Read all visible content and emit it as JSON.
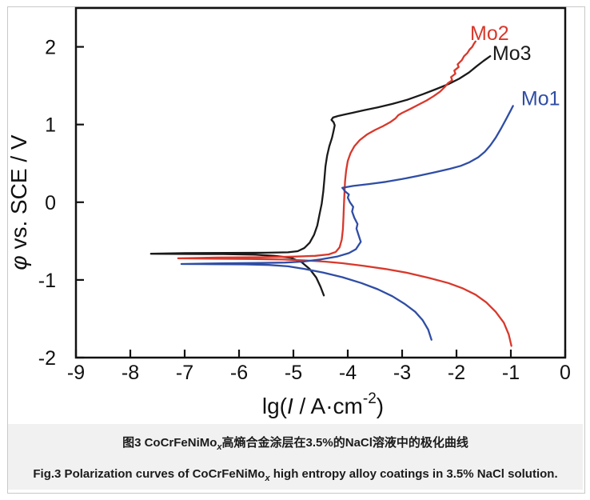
{
  "chart_data": {
    "type": "line",
    "title": "",
    "xlabel": "lg(I / A·cm⁻²)",
    "xlabel_parts": {
      "pre": "lg(",
      "var": "I",
      "mid": " / A·cm",
      "sup": "-2",
      "post": ")"
    },
    "ylabel": "φ vs. SCE / V",
    "ylabel_parts": {
      "var": "φ",
      "rest": " vs. SCE / V"
    },
    "xlim": [
      -9,
      0
    ],
    "ylim": [
      -2,
      2.5
    ],
    "xticks": [
      -9,
      -8,
      -7,
      -6,
      -5,
      -4,
      -3,
      -2,
      -1,
      0
    ],
    "yticks": [
      -2,
      -1,
      0,
      1,
      2
    ],
    "grid": false,
    "legend_position": "curve-end-labels",
    "axis_color": "#111111",
    "series": [
      {
        "name": "Mo3",
        "color": "#1a1a1a",
        "corrosion_potential_V": -0.66,
        "points": [
          [
            -4.44,
            -1.2
          ],
          [
            -4.5,
            -1.09
          ],
          [
            -4.58,
            -0.97
          ],
          [
            -4.7,
            -0.86
          ],
          [
            -4.85,
            -0.77
          ],
          [
            -5.05,
            -0.715
          ],
          [
            -5.35,
            -0.69
          ],
          [
            -5.7,
            -0.675
          ],
          [
            -6.3,
            -0.668
          ],
          [
            -7.0,
            -0.666
          ],
          [
            -7.62,
            -0.663
          ],
          [
            -7.0,
            -0.655
          ],
          [
            -6.2,
            -0.652
          ],
          [
            -5.5,
            -0.65
          ],
          [
            -5.1,
            -0.645
          ],
          [
            -4.92,
            -0.63
          ],
          [
            -4.8,
            -0.59
          ],
          [
            -4.7,
            -0.52
          ],
          [
            -4.62,
            -0.42
          ],
          [
            -4.56,
            -0.3
          ],
          [
            -4.52,
            -0.16
          ],
          [
            -4.48,
            -0.02
          ],
          [
            -4.45,
            0.14
          ],
          [
            -4.43,
            0.3
          ],
          [
            -4.41,
            0.46
          ],
          [
            -4.38,
            0.6
          ],
          [
            -4.34,
            0.72
          ],
          [
            -4.29,
            0.83
          ],
          [
            -4.26,
            0.92
          ],
          [
            -4.24,
            0.99
          ],
          [
            -4.26,
            1.03
          ],
          [
            -4.3,
            1.06
          ],
          [
            -4.27,
            1.09
          ],
          [
            -4.18,
            1.11
          ],
          [
            -4.05,
            1.13
          ],
          [
            -3.92,
            1.15
          ],
          [
            -3.7,
            1.185
          ],
          [
            -3.45,
            1.22
          ],
          [
            -3.18,
            1.265
          ],
          [
            -2.9,
            1.32
          ],
          [
            -2.62,
            1.39
          ],
          [
            -2.38,
            1.455
          ],
          [
            -2.15,
            1.52
          ],
          [
            -1.95,
            1.59
          ],
          [
            -1.77,
            1.67
          ],
          [
            -1.62,
            1.755
          ],
          [
            -1.5,
            1.82
          ],
          [
            -1.38,
            1.88
          ]
        ]
      },
      {
        "name": "Mo2",
        "color": "#d8382b",
        "corrosion_potential_V": -0.72,
        "points": [
          [
            -0.99,
            -1.85
          ],
          [
            -1.04,
            -1.7
          ],
          [
            -1.13,
            -1.55
          ],
          [
            -1.28,
            -1.41
          ],
          [
            -1.45,
            -1.29
          ],
          [
            -1.65,
            -1.19
          ],
          [
            -1.88,
            -1.11
          ],
          [
            -2.15,
            -1.04
          ],
          [
            -2.5,
            -0.975
          ],
          [
            -2.9,
            -0.91
          ],
          [
            -3.3,
            -0.86
          ],
          [
            -3.7,
            -0.82
          ],
          [
            -4.1,
            -0.785
          ],
          [
            -4.4,
            -0.765
          ],
          [
            -4.75,
            -0.75
          ],
          [
            -5.2,
            -0.738
          ],
          [
            -5.8,
            -0.73
          ],
          [
            -6.5,
            -0.726
          ],
          [
            -7.12,
            -0.722
          ],
          [
            -6.4,
            -0.712
          ],
          [
            -5.6,
            -0.708
          ],
          [
            -5.0,
            -0.7
          ],
          [
            -4.6,
            -0.69
          ],
          [
            -4.35,
            -0.672
          ],
          [
            -4.22,
            -0.64
          ],
          [
            -4.15,
            -0.58
          ],
          [
            -4.11,
            -0.48
          ],
          [
            -4.09,
            -0.35
          ],
          [
            -4.08,
            -0.2
          ],
          [
            -4.07,
            -0.04
          ],
          [
            -4.06,
            0.12
          ],
          [
            -4.05,
            0.27
          ],
          [
            -4.03,
            0.41
          ],
          [
            -4.0,
            0.53
          ],
          [
            -3.95,
            0.63
          ],
          [
            -3.88,
            0.72
          ],
          [
            -3.78,
            0.8
          ],
          [
            -3.65,
            0.87
          ],
          [
            -3.5,
            0.93
          ],
          [
            -3.35,
            0.98
          ],
          [
            -3.22,
            1.03
          ],
          [
            -3.12,
            1.08
          ],
          [
            -3.07,
            1.12
          ],
          [
            -3.0,
            1.15
          ],
          [
            -2.85,
            1.2
          ],
          [
            -2.7,
            1.255
          ],
          [
            -2.55,
            1.31
          ],
          [
            -2.42,
            1.365
          ],
          [
            -2.3,
            1.425
          ],
          [
            -2.22,
            1.48
          ],
          [
            -2.16,
            1.53
          ],
          [
            -2.08,
            1.57
          ],
          [
            -2.1,
            1.61
          ],
          [
            -2.02,
            1.655
          ],
          [
            -2.04,
            1.695
          ],
          [
            -1.96,
            1.74
          ],
          [
            -1.98,
            1.775
          ],
          [
            -1.9,
            1.83
          ],
          [
            -1.86,
            1.88
          ],
          [
            -1.8,
            1.92
          ],
          [
            -1.76,
            1.965
          ],
          [
            -1.71,
            2.0
          ],
          [
            -1.68,
            2.04
          ],
          [
            -1.65,
            2.07
          ]
        ]
      },
      {
        "name": "Mo1",
        "color": "#2f4da5",
        "corrosion_potential_V": -0.8,
        "points": [
          [
            -2.46,
            -1.77
          ],
          [
            -2.52,
            -1.64
          ],
          [
            -2.62,
            -1.52
          ],
          [
            -2.76,
            -1.41
          ],
          [
            -2.95,
            -1.31
          ],
          [
            -3.18,
            -1.21
          ],
          [
            -3.45,
            -1.12
          ],
          [
            -3.75,
            -1.04
          ],
          [
            -4.1,
            -0.965
          ],
          [
            -4.45,
            -0.905
          ],
          [
            -4.8,
            -0.858
          ],
          [
            -5.1,
            -0.825
          ],
          [
            -5.45,
            -0.808
          ],
          [
            -5.9,
            -0.8
          ],
          [
            -6.5,
            -0.797
          ],
          [
            -7.06,
            -0.795
          ],
          [
            -6.3,
            -0.786
          ],
          [
            -5.6,
            -0.782
          ],
          [
            -5.15,
            -0.777
          ],
          [
            -4.8,
            -0.762
          ],
          [
            -4.5,
            -0.737
          ],
          [
            -4.2,
            -0.7
          ],
          [
            -3.98,
            -0.655
          ],
          [
            -3.85,
            -0.605
          ],
          [
            -3.76,
            -0.51
          ],
          [
            -3.8,
            -0.425
          ],
          [
            -3.84,
            -0.34
          ],
          [
            -3.82,
            -0.28
          ],
          [
            -3.88,
            -0.2
          ],
          [
            -3.92,
            -0.12
          ],
          [
            -3.9,
            -0.06
          ],
          [
            -3.96,
            0.0
          ],
          [
            -4.0,
            0.06
          ],
          [
            -3.98,
            0.1
          ],
          [
            -4.05,
            0.14
          ],
          [
            -4.08,
            0.17
          ],
          [
            -4.1,
            0.185
          ],
          [
            -3.9,
            0.21
          ],
          [
            -3.6,
            0.235
          ],
          [
            -3.3,
            0.262
          ],
          [
            -3.0,
            0.298
          ],
          [
            -2.7,
            0.34
          ],
          [
            -2.4,
            0.385
          ],
          [
            -2.12,
            0.43
          ],
          [
            -1.92,
            0.468
          ],
          [
            -1.76,
            0.515
          ],
          [
            -1.6,
            0.578
          ],
          [
            -1.48,
            0.648
          ],
          [
            -1.38,
            0.73
          ],
          [
            -1.28,
            0.83
          ],
          [
            -1.18,
            0.95
          ],
          [
            -1.08,
            1.08
          ],
          [
            -1.0,
            1.185
          ],
          [
            -0.96,
            1.24
          ]
        ]
      }
    ],
    "annotations": [
      {
        "text": "Mo2",
        "color": "#d8382b",
        "x": -1.75,
        "y": 2.09
      },
      {
        "text": "Mo3",
        "color": "#1a1a1a",
        "x": -1.34,
        "y": 1.83
      },
      {
        "text": "Mo1",
        "color": "#2f4da5",
        "x": -0.81,
        "y": 1.25
      }
    ]
  },
  "caption": {
    "cn": {
      "pre": "图3   CoCrFeNiMo",
      "sub": "x",
      "post": "高熵合金涂层在3.5%的NaCl溶液中的极化曲线"
    },
    "en": {
      "pre": "Fig.3   Polarization curves of CoCrFeNiMo",
      "sub": "x",
      "post": " high entropy alloy coatings in 3.5% NaCl solution."
    }
  }
}
